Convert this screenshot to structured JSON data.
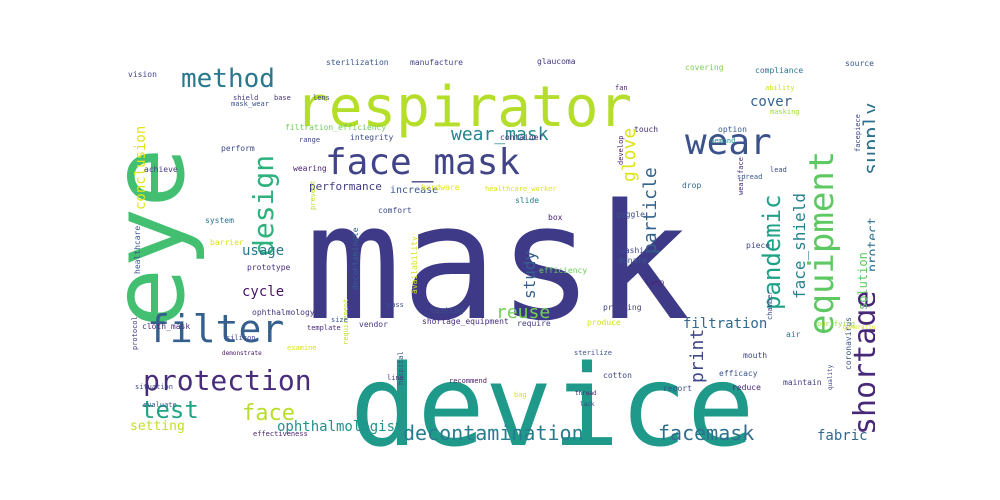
{
  "words": [
    {
      "id": "mask",
      "text": "mask",
      "color": "#3e3a87"
    },
    {
      "id": "device",
      "text": "device",
      "color": "#1f9a8a"
    },
    {
      "id": "eye",
      "text": "eye",
      "color": "#43bf71"
    },
    {
      "id": "respirator",
      "text": "respirator",
      "color": "#b5de2b"
    },
    {
      "id": "face_mask",
      "text": "face_mask",
      "color": "#414487"
    },
    {
      "id": "filter",
      "text": "filter",
      "color": "#355f8d"
    },
    {
      "id": "wear",
      "text": "wear",
      "color": "#3b528b"
    },
    {
      "id": "equipment",
      "text": "equipment",
      "color": "#5ec962"
    },
    {
      "id": "protection",
      "text": "protection",
      "color": "#472d7b"
    },
    {
      "id": "design",
      "text": "design",
      "color": "#2db27d"
    },
    {
      "id": "method",
      "text": "method",
      "color": "#2a788e"
    },
    {
      "id": "pandemic",
      "text": "pandemic",
      "color": "#1fa187"
    },
    {
      "id": "shortage",
      "text": "shortage",
      "color": "#482878"
    },
    {
      "id": "test",
      "text": "test",
      "color": "#20a486"
    },
    {
      "id": "face",
      "text": "face",
      "color": "#b8de29"
    },
    {
      "id": "decontamination",
      "text": "decontamination",
      "color": "#287c8e"
    },
    {
      "id": "facemask",
      "text": "facemask",
      "color": "#2e6f8e"
    },
    {
      "id": "supply",
      "text": "supply",
      "color": "#2c728e"
    },
    {
      "id": "wear_mask",
      "text": "wear_mask",
      "color": "#25858e"
    },
    {
      "id": "particle",
      "text": "particle",
      "color": "#33638d"
    },
    {
      "id": "glove",
      "text": "glove",
      "color": "#dde318"
    },
    {
      "id": "face_shield",
      "text": "face_shield",
      "color": "#26828e"
    },
    {
      "id": "print",
      "text": "print",
      "color": "#3f4788"
    },
    {
      "id": "reuse",
      "text": "reuse",
      "color": "#73d055"
    },
    {
      "id": "study",
      "text": "study",
      "color": "#355e8d"
    },
    {
      "id": "usage",
      "text": "usage",
      "color": "#2a768e"
    },
    {
      "id": "cycle",
      "text": "cycle",
      "color": "#481668"
    },
    {
      "id": "filtration",
      "text": "filtration",
      "color": "#30698e"
    },
    {
      "id": "fabric",
      "text": "fabric",
      "color": "#31688e"
    },
    {
      "id": "ophthalmologist",
      "text": "ophthalmologist",
      "color": "#20928c"
    },
    {
      "id": "conclusion",
      "text": "conclusion",
      "color": "#e2e418"
    },
    {
      "id": "cover",
      "text": "cover",
      "color": "#34618d"
    },
    {
      "id": "protect",
      "text": "protect",
      "color": "#2d708e"
    },
    {
      "id": "solution",
      "text": "solution",
      "color": "#5cc863"
    },
    {
      "id": "setting",
      "text": "setting",
      "color": "#c2df23"
    },
    {
      "id": "performance",
      "text": "performance",
      "color": "#433e85"
    },
    {
      "id": "increase",
      "text": "increase",
      "color": "#38598c"
    },
    {
      "id": "sterilization",
      "text": "sterilization",
      "color": "#3a548c"
    },
    {
      "id": "manufacture",
      "text": "manufacture",
      "color": "#404688"
    },
    {
      "id": "glaucoma",
      "text": "glaucoma",
      "color": "#453581"
    },
    {
      "id": "vision",
      "text": "vision",
      "color": "#414487"
    },
    {
      "id": "covering",
      "text": "covering",
      "color": "#7ad151"
    },
    {
      "id": "compliance",
      "text": "compliance",
      "color": "#2b748e"
    },
    {
      "id": "source",
      "text": "source",
      "color": "#39568c"
    },
    {
      "id": "mask_wear",
      "text": "mask_wear",
      "color": "#3b518b"
    },
    {
      "id": "shield",
      "text": "shield",
      "color": "#443983"
    },
    {
      "id": "base",
      "text": "base",
      "color": "#46337f"
    },
    {
      "id": "lens",
      "text": "lens",
      "color": "#3e4989"
    },
    {
      "id": "fan",
      "text": "fan",
      "color": "#481f70"
    },
    {
      "id": "option",
      "text": "option",
      "color": "#365c8d"
    },
    {
      "id": "demand",
      "text": "demand",
      "color": "#23888e"
    },
    {
      "id": "ability",
      "text": "ability",
      "color": "#d0e11c"
    },
    {
      "id": "filtration_efficiency",
      "text": "filtration_efficiency",
      "color": "#6ece58"
    },
    {
      "id": "integrity",
      "text": "integrity",
      "color": "#3e4a89"
    },
    {
      "id": "container",
      "text": "container",
      "color": "#46327e"
    },
    {
      "id": "masking",
      "text": "masking",
      "color": "#9fda3a"
    },
    {
      "id": "touch",
      "text": "touch",
      "color": "#472c7a"
    },
    {
      "id": "perform",
      "text": "perform",
      "color": "#3f4889"
    },
    {
      "id": "wearing",
      "text": "wearing",
      "color": "#482475"
    },
    {
      "id": "range",
      "text": "range",
      "color": "#404588"
    },
    {
      "id": "achieve",
      "text": "achieve",
      "color": "#443a83"
    },
    {
      "id": "prevent",
      "text": "prevent",
      "color": "#b5de2b"
    },
    {
      "id": "hardware",
      "text": "hardware",
      "color": "#e5e419"
    },
    {
      "id": "healthcare_worker",
      "text": "healthcare_worker",
      "color": "#dde318"
    },
    {
      "id": "develop",
      "text": "develop",
      "color": "#481b6d"
    },
    {
      "id": "drop",
      "text": "drop",
      "color": "#31678e"
    },
    {
      "id": "spread",
      "text": "spread",
      "color": "#39568c"
    },
    {
      "id": "wear_face",
      "text": "wear_face",
      "color": "#46327e"
    },
    {
      "id": "lead",
      "text": "lead",
      "color": "#3f4889"
    },
    {
      "id": "slide",
      "text": "slide",
      "color": "#26828e"
    },
    {
      "id": "box",
      "text": "box",
      "color": "#482475"
    },
    {
      "id": "goggle",
      "text": "goggle",
      "color": "#3d4d8a"
    },
    {
      "id": "system",
      "text": "system",
      "color": "#2c738e"
    },
    {
      "id": "comfort",
      "text": "comfort",
      "color": "#3e4a89"
    },
    {
      "id": "decontaminate",
      "text": "decontaminate",
      "color": "#34608d"
    },
    {
      "id": "availability",
      "text": "availability",
      "color": "#d8e219"
    },
    {
      "id": "efficiency",
      "text": "efficiency",
      "color": "#6ccd5a"
    },
    {
      "id": "washing",
      "text": "washing",
      "color": "#3e4989"
    },
    {
      "id": "donate",
      "text": "donate",
      "color": "#3b528b"
    },
    {
      "id": "piece",
      "text": "piece",
      "color": "#414487"
    },
    {
      "id": "lamp",
      "text": "lamp",
      "color": "#482677"
    },
    {
      "id": "prototype",
      "text": "prototype",
      "color": "#472d7b"
    },
    {
      "id": "barrier",
      "text": "barrier",
      "color": "#dae319"
    },
    {
      "id": "healthcare",
      "text": "healthcare",
      "color": "#39568c"
    },
    {
      "id": "ophthalmology",
      "text": "ophthalmology",
      "color": "#453882"
    },
    {
      "id": "requirement",
      "text": "requirement",
      "color": "#c0df25"
    },
    {
      "id": "testing",
      "text": "testing",
      "color": "#3b518b"
    },
    {
      "id": "printing",
      "text": "printing",
      "color": "#433e85"
    },
    {
      "id": "chamber",
      "text": "chamber",
      "color": "#3e4c8a"
    },
    {
      "id": "air",
      "text": "air",
      "color": "#2a778e"
    },
    {
      "id": "shortage_equipment",
      "text": "shortage_equipment",
      "color": "#472e7c"
    },
    {
      "id": "require",
      "text": "require",
      "color": "#433d84"
    },
    {
      "id": "produce",
      "text": "produce",
      "color": "#d2e21b"
    },
    {
      "id": "vendor",
      "text": "vendor",
      "color": "#453781"
    },
    {
      "id": "pass",
      "text": "pass",
      "color": "#3e4c8a"
    },
    {
      "id": "size",
      "text": "size",
      "color": "#38588c"
    },
    {
      "id": "template",
      "text": "template",
      "color": "#472a7a"
    },
    {
      "id": "examine",
      "text": "examine",
      "color": "#dde318"
    },
    {
      "id": "cloth_mask",
      "text": "cloth_mask",
      "color": "#472a7a"
    },
    {
      "id": "silicon",
      "text": "silicon",
      "color": "#3f4889"
    },
    {
      "id": "protocol",
      "text": "protocol",
      "color": "#453781"
    },
    {
      "id": "mouth",
      "text": "mouth",
      "color": "#404588"
    },
    {
      "id": "efficacy",
      "text": "efficacy",
      "color": "#3a538b"
    },
    {
      "id": "coronavirus",
      "text": "coronavirus",
      "color": "#3b528b"
    },
    {
      "id": "reduce",
      "text": "reduce",
      "color": "#482475"
    },
    {
      "id": "maintain",
      "text": "maintain",
      "color": "#433e85"
    },
    {
      "id": "cotton",
      "text": "cotton",
      "color": "#414487"
    },
    {
      "id": "report",
      "text": "report",
      "color": "#3d4d8a"
    },
    {
      "id": "recommend",
      "text": "recommend",
      "color": "#481a6c"
    },
    {
      "id": "hospital",
      "text": "hospital",
      "color": "#3b528b"
    },
    {
      "id": "bag",
      "text": "bag",
      "color": "#d2e21b"
    },
    {
      "id": "thread",
      "text": "thread",
      "color": "#482878"
    },
    {
      "id": "lack",
      "text": "lack",
      "color": "#3f4788"
    },
    {
      "id": "line",
      "text": "line",
      "color": "#443983"
    },
    {
      "id": "evaluate",
      "text": "evaluate",
      "color": "#38588c"
    },
    {
      "id": "effectiveness",
      "text": "effectiveness",
      "color": "#481f70"
    },
    {
      "id": "situation",
      "text": "situation",
      "color": "#404588"
    },
    {
      "id": "quality",
      "text": "quality",
      "color": "#3f4889"
    },
    {
      "id": "demonstrate",
      "text": "demonstrate",
      "color": "#481769"
    },
    {
      "id": "sterilize",
      "text": "sterilize",
      "color": "#3b528b"
    },
    {
      "id": "purifying",
      "text": "purifying",
      "color": "#9bd93c"
    },
    {
      "id": "generation",
      "text": "generation",
      "color": "#dde318"
    },
    {
      "id": "facepiece",
      "text": "facepiece",
      "color": "#3f4889"
    }
  ]
}
